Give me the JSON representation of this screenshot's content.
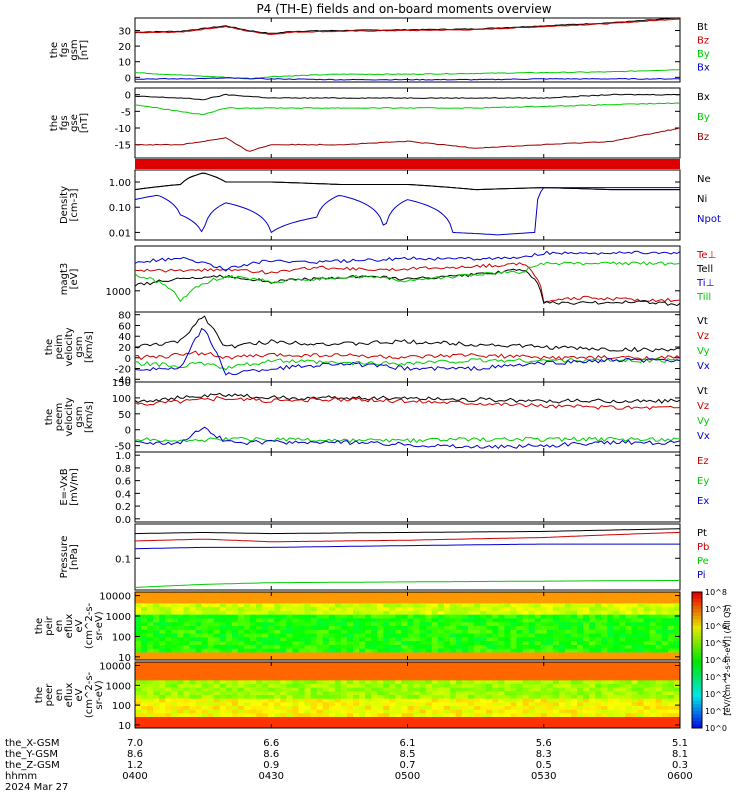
{
  "chart_data": {
    "type": "line",
    "title": "P4 (TH-E) fields and on-board moments overview",
    "x_ticks": [
      "0400",
      "0430",
      "0500",
      "0530",
      "0600"
    ],
    "x_range": [
      "0400",
      "0600"
    ],
    "ephemeris": {
      "labels": [
        "the_X-GSM",
        "the_Y-GSM",
        "the_Z-GSM",
        "hhmm"
      ],
      "date": "2024 Mar 27",
      "X": [
        "7.0",
        "6.6",
        "6.1",
        "5.6",
        "5.1"
      ],
      "Y": [
        "8.6",
        "8.6",
        "8.5",
        "8.3",
        "8.1"
      ],
      "Z": [
        "1.2",
        "0.9",
        "0.7",
        "0.5",
        "0.3"
      ]
    },
    "panels": [
      {
        "ylabel": [
          "the",
          "fgs",
          "gsm",
          "[nT]"
        ],
        "ylim": [
          -3,
          38
        ],
        "yticks": [
          "0",
          "10",
          "20",
          "30"
        ],
        "scale": "linear",
        "series": [
          {
            "name": "Bt",
            "color": "#000000",
            "x": [
              0,
              10,
              20,
              25,
              30,
              35,
              45,
              60,
              75,
              90,
              105,
              120
            ],
            "values": [
              29,
              29.5,
              33,
              30,
              28,
              29.5,
              30,
              30.5,
              31,
              33,
              35,
              38
            ]
          },
          {
            "name": "Bz",
            "color": "#cc0000",
            "x": [
              0,
              10,
              20,
              25,
              30,
              35,
              45,
              60,
              75,
              90,
              105,
              120
            ],
            "values": [
              28.5,
              29,
              32.5,
              29.5,
              27.5,
              29,
              29.5,
              30,
              30.5,
              32.5,
              34.5,
              37.5
            ]
          },
          {
            "name": "By",
            "color": "#00cc00",
            "x": [
              0,
              10,
              20,
              25,
              30,
              45,
              60,
              75,
              90,
              105,
              120
            ],
            "values": [
              3,
              1.5,
              0,
              -1,
              0.5,
              2,
              2,
              2.5,
              3,
              3.5,
              5
            ]
          },
          {
            "name": "Bx",
            "color": "#0000cc",
            "x": [
              0,
              10,
              20,
              30,
              45,
              60,
              75,
              90,
              105,
              120
            ],
            "values": [
              -1,
              -1,
              -0.5,
              -1,
              -1.5,
              -1.5,
              -1.5,
              -1,
              -1,
              -1
            ]
          }
        ]
      },
      {
        "ylabel": [
          "the",
          "fgs",
          "gse",
          "[nT]"
        ],
        "ylim": [
          -19,
          2
        ],
        "yticks": [
          "0",
          "-5",
          "-10",
          "-15"
        ],
        "scale": "linear",
        "series": [
          {
            "name": "Bx",
            "color": "#000000",
            "x": [
              0,
              10,
              15,
              20,
              30,
              45,
              60,
              75,
              90,
              105,
              120
            ],
            "values": [
              -0.5,
              -1,
              -1.5,
              0,
              -1,
              -1,
              -1,
              -1,
              -1,
              0,
              0
            ]
          },
          {
            "name": "By",
            "color": "#00cc00",
            "x": [
              0,
              10,
              15,
              20,
              30,
              45,
              60,
              75,
              90,
              105,
              120
            ],
            "values": [
              -3,
              -5,
              -6,
              -4,
              -4,
              -4,
              -4,
              -4,
              -3.5,
              -3,
              -2.5
            ]
          },
          {
            "name": "Bz",
            "color": "#990000",
            "x": [
              0,
              10,
              20,
              25,
              30,
              45,
              60,
              75,
              90,
              105,
              120
            ],
            "values": [
              -15,
              -15,
              -13,
              -17,
              -15,
              -15,
              -14,
              -16,
              -15,
              -14,
              -10
            ]
          }
        ]
      },
      {
        "ylabel": [
          "Density",
          "[cm-3]"
        ],
        "ylim": [
          0.005,
          3
        ],
        "yticks": [
          "1.00",
          "0.10",
          "0.01"
        ],
        "ytick_values": [
          1,
          0.1,
          0.01
        ],
        "scale": "log",
        "series": [
          {
            "name": "Ne",
            "color": "#000000",
            "x": [
              0,
              10,
              12,
              15,
              20,
              30,
              45,
              60,
              75,
              90,
              105,
              120
            ],
            "values": [
              0.5,
              0.8,
              1.5,
              2.3,
              1.0,
              1.0,
              0.8,
              0.8,
              0.5,
              0.6,
              0.5,
              0.5
            ]
          },
          {
            "name": "Ni",
            "color": "#000000",
            "x": [
              0,
              10,
              12,
              15,
              20,
              30,
              45,
              60,
              75,
              90,
              105,
              120
            ],
            "values": [
              0.5,
              0.8,
              1.5,
              2.3,
              1.0,
              1.0,
              0.8,
              0.8,
              0.5,
              0.6,
              0.5,
              0.5
            ]
          },
          {
            "name": "Npot",
            "color": "#0000cc",
            "x": [
              0,
              5,
              10,
              15,
              20,
              30,
              40,
              45,
              55,
              60,
              70,
              80,
              88,
              90,
              105,
              120
            ],
            "values": [
              0.2,
              0.3,
              0.05,
              0.008,
              0.15,
              0.01,
              0.04,
              0.3,
              0.01,
              0.2,
              0.01,
              0.008,
              0.01,
              0.6,
              0.6,
              0.6
            ]
          }
        ]
      },
      {
        "ylabel": [
          "magt3",
          "[eV]"
        ],
        "ylim": [
          200,
          30000
        ],
        "yticks": [
          "1000"
        ],
        "ytick_values": [
          1000
        ],
        "scale": "log",
        "series": [
          {
            "name": "Te⊥",
            "color": "#cc0000",
            "x": [
              0,
              10,
              20,
              30,
              40,
              50,
              60,
              70,
              80,
              85,
              90,
              100,
              110,
              120
            ],
            "values": [
              5000,
              4500,
              5000,
              4000,
              6000,
              5000,
              5500,
              6000,
              7000,
              8000,
              450,
              600,
              500,
              500
            ]
          },
          {
            "name": "Tell",
            "color": "#000000",
            "x": [
              0,
              10,
              20,
              30,
              40,
              50,
              60,
              70,
              80,
              85,
              90,
              100,
              110,
              120
            ],
            "values": [
              1500,
              2500,
              3000,
              2000,
              2500,
              3000,
              2500,
              3000,
              4000,
              5000,
              400,
              400,
              450,
              350
            ]
          },
          {
            "name": "Ti⊥",
            "color": "#0000cc",
            "x": [
              0,
              10,
              20,
              30,
              40,
              50,
              60,
              70,
              80,
              85,
              90,
              100,
              110,
              120
            ],
            "values": [
              9000,
              12000,
              5000,
              10000,
              9000,
              10000,
              12000,
              11000,
              12000,
              12000,
              18000,
              18000,
              18000,
              18000
            ]
          },
          {
            "name": "Till",
            "color": "#00cc00",
            "x": [
              0,
              10,
              20,
              30,
              40,
              50,
              60,
              70,
              80,
              85,
              90,
              100,
              110,
              120
            ],
            "values": [
              3500,
              400,
              3000,
              2000,
              2500,
              3000,
              2000,
              3000,
              4000,
              4000,
              8000,
              8000,
              8000,
              8000
            ]
          }
        ]
      },
      {
        "ylabel": [
          "the",
          "peim",
          "velocity",
          "gsm",
          "[km/s]"
        ],
        "ylim": [
          -45,
          85
        ],
        "yticks": [
          "80",
          "60",
          "40",
          "20",
          "0",
          "-20",
          "-40"
        ],
        "scale": "linear",
        "series": [
          {
            "name": "Vt",
            "color": "#000000",
            "x": [
              0,
              10,
              15,
              20,
              30,
              45,
              60,
              75,
              90,
              105,
              120
            ],
            "values": [
              20,
              30,
              80,
              20,
              30,
              25,
              30,
              25,
              20,
              15,
              15
            ]
          },
          {
            "name": "Vz",
            "color": "#cc0000",
            "x": [
              0,
              10,
              15,
              20,
              30,
              45,
              60,
              75,
              90,
              105,
              120
            ],
            "values": [
              0,
              5,
              10,
              0,
              5,
              5,
              0,
              5,
              0,
              0,
              0
            ]
          },
          {
            "name": "Vy",
            "color": "#00cc00",
            "x": [
              0,
              10,
              15,
              20,
              30,
              45,
              60,
              75,
              90,
              105,
              120
            ],
            "values": [
              -10,
              -15,
              -10,
              -20,
              -5,
              -10,
              -10,
              -5,
              -5,
              -5,
              -5
            ]
          },
          {
            "name": "Vx",
            "color": "#0000cc",
            "x": [
              0,
              10,
              15,
              20,
              30,
              45,
              60,
              75,
              90,
              105,
              120
            ],
            "values": [
              -20,
              -20,
              60,
              -30,
              -20,
              -10,
              -20,
              -20,
              -10,
              -5,
              -5
            ]
          }
        ]
      },
      {
        "ylabel": [
          "the",
          "peem",
          "velocity",
          "gsm",
          "[km/s]"
        ],
        "ylim": [
          -70,
          150
        ],
        "yticks": [
          "150",
          "100",
          "50",
          "0",
          "-50"
        ],
        "scale": "linear",
        "series": [
          {
            "name": "Vt",
            "color": "#000000",
            "x": [
              0,
              10,
              20,
              30,
              45,
              60,
              75,
              90,
              105,
              120
            ],
            "values": [
              90,
              100,
              110,
              100,
              100,
              100,
              95,
              90,
              90,
              90
            ]
          },
          {
            "name": "Vz",
            "color": "#cc0000",
            "x": [
              0,
              10,
              20,
              30,
              45,
              60,
              75,
              90,
              105,
              120
            ],
            "values": [
              80,
              90,
              100,
              90,
              95,
              90,
              85,
              75,
              70,
              70
            ]
          },
          {
            "name": "Vy",
            "color": "#00cc00",
            "x": [
              0,
              10,
              20,
              30,
              45,
              60,
              75,
              90,
              105,
              120
            ],
            "values": [
              -30,
              -35,
              -30,
              -30,
              -35,
              -35,
              -30,
              -30,
              -30,
              -30
            ]
          },
          {
            "name": "Vx",
            "color": "#0000cc",
            "x": [
              0,
              10,
              15,
              20,
              30,
              45,
              60,
              75,
              90,
              105,
              120
            ],
            "values": [
              -40,
              -40,
              10,
              -40,
              -40,
              -40,
              -45,
              -55,
              -50,
              -40,
              -40
            ]
          }
        ]
      },
      {
        "ylabel": [
          "E=-VxB",
          "[mV/m]"
        ],
        "ylim": [
          -0.05,
          1.05
        ],
        "yticks": [
          "1.0",
          "0.8",
          "0.6",
          "0.4",
          "0.2",
          "0.0"
        ],
        "scale": "linear",
        "series": [
          {
            "name": "Ez",
            "color": "#cc0000"
          },
          {
            "name": "Ey",
            "color": "#00cc00"
          },
          {
            "name": "Ex",
            "color": "#0000cc"
          }
        ]
      },
      {
        "ylabel": [
          "Pressure",
          "[nPa]"
        ],
        "ylim": [
          0.01,
          1.2
        ],
        "yticks": [
          "0.1"
        ],
        "ytick_values": [
          0.1
        ],
        "scale": "log",
        "series": [
          {
            "name": "Pt",
            "color": "#000000",
            "x": [
              0,
              15,
              30,
              60,
              90,
              120
            ],
            "values": [
              0.6,
              0.65,
              0.6,
              0.65,
              0.7,
              0.85
            ]
          },
          {
            "name": "Pb",
            "color": "#cc0000",
            "x": [
              0,
              15,
              30,
              60,
              90,
              120
            ],
            "values": [
              0.35,
              0.4,
              0.33,
              0.37,
              0.45,
              0.65
            ]
          },
          {
            "name": "Pe",
            "color": "#00cc00",
            "x": [
              0,
              15,
              30,
              60,
              90,
              120
            ],
            "values": [
              0.012,
              0.015,
              0.017,
              0.018,
              0.019,
              0.02
            ]
          },
          {
            "name": "Pi",
            "color": "#0000cc",
            "x": [
              0,
              15,
              30,
              60,
              90,
              120
            ],
            "values": [
              0.2,
              0.22,
              0.22,
              0.25,
              0.28,
              0.28
            ]
          }
        ]
      },
      {
        "ylabel": [
          "the",
          "peir",
          "en",
          "eflux",
          "eV",
          "(cm^2-s-",
          "sr-eV)"
        ],
        "ylim": [
          7,
          15000
        ],
        "yticks": [
          "10000",
          "1000",
          "100",
          "10"
        ],
        "ytick_values": [
          10000,
          1000,
          100,
          10
        ],
        "scale": "log",
        "kind": "spectrogram"
      },
      {
        "ylabel": [
          "the",
          "peer",
          "en",
          "eflux",
          "eV",
          "(cm^2-s-",
          "sr-eV)"
        ],
        "ylim": [
          7,
          15000
        ],
        "yticks": [
          "10000",
          "1000",
          "100",
          "10"
        ],
        "ytick_values": [
          10000,
          1000,
          100,
          10
        ],
        "scale": "log",
        "kind": "spectrogram"
      }
    ],
    "colorbar": {
      "ticks": [
        "10^8",
        "10^7",
        "10^6",
        "10^5",
        "10^4",
        "10^3",
        "10^2",
        "10^1",
        "10^0"
      ],
      "label": "[eV/(cm^2-s-sr-eV)] (All Qs)"
    }
  }
}
